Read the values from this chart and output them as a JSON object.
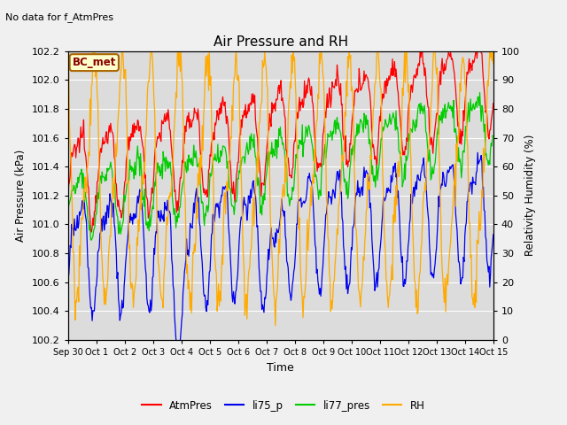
{
  "title": "Air Pressure and RH",
  "top_left_text": "No data for f_AtmPres",
  "box_label": "BC_met",
  "xlabel": "Time",
  "ylabel_left": "Air Pressure (kPa)",
  "ylabel_right": "Relativity Humidity (%)",
  "ylim_left": [
    100.2,
    102.2
  ],
  "ylim_right": [
    0,
    100
  ],
  "bg_color": "#dcdcdc",
  "fig_bg_color": "#f0f0f0",
  "line_colors": {
    "AtmPres": "#ff0000",
    "li75_p": "#0000ee",
    "li77_pres": "#00cc00",
    "RH": "#ffaa00"
  },
  "x_tick_labels": [
    "Sep 30",
    "Oct 1",
    "Oct 2",
    "Oct 3",
    "Oct 4",
    "Oct 5",
    "Oct 6",
    "Oct 7",
    "Oct 8",
    "Oct 9",
    "Oct 10",
    "Oct 11",
    "Oct 12",
    "Oct 13",
    "Oct 14",
    "Oct 15"
  ],
  "yticks_left": [
    100.2,
    100.4,
    100.6,
    100.8,
    101.0,
    101.2,
    101.4,
    101.6,
    101.8,
    102.0,
    102.2
  ],
  "yticks_right": [
    0,
    10,
    20,
    30,
    40,
    50,
    60,
    70,
    80,
    90,
    100
  ]
}
